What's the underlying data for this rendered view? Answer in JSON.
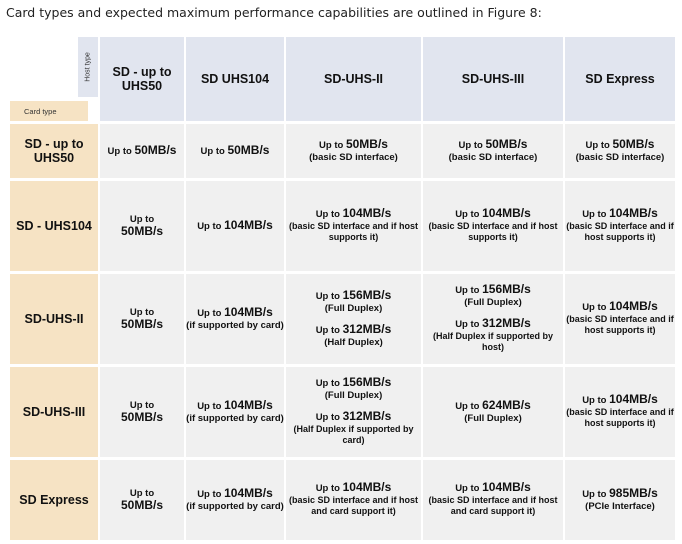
{
  "intro": "Card types and expected maximum performance capabilities are outlined in Figure 8:",
  "corner": {
    "host_type": "Host type",
    "card_type": "Card type"
  },
  "columns": [
    "SD - up to UHS50",
    "SD UHS104",
    "SD-UHS-II",
    "SD-UHS-III",
    "SD Express"
  ],
  "rows": [
    {
      "label": "SD - up to UHS50",
      "cells": [
        [
          {
            "t": "Up to ",
            "b": "50MB/s"
          }
        ],
        [
          {
            "t": "Up to ",
            "b": "50MB/s"
          }
        ],
        [
          {
            "t": "Up to ",
            "b": "50MB/s",
            "n": "(basic SD interface)"
          }
        ],
        [
          {
            "t": "Up to ",
            "b": "50MB/s",
            "n": "(basic SD interface)"
          }
        ],
        [
          {
            "t": "Up to ",
            "b": "50MB/s",
            "n": "(basic SD interface)"
          }
        ]
      ]
    },
    {
      "label": "SD - UHS104",
      "cells": [
        [
          {
            "t": "Up to",
            "b": "50MB/s"
          }
        ],
        [
          {
            "t": "Up to ",
            "b": "104MB/s"
          }
        ],
        [
          {
            "t": "Up to ",
            "b": "104MB/s",
            "n": "(basic SD interface and if host supports it)"
          }
        ],
        [
          {
            "t": "Up to ",
            "b": "104MB/s",
            "n": "(basic SD interface and if host supports it)"
          }
        ],
        [
          {
            "t": "Up to ",
            "b": "104MB/s",
            "n": "(basic SD interface and if host supports it)"
          }
        ]
      ]
    },
    {
      "label": "SD-UHS-II",
      "cells": [
        [
          {
            "t": "Up to",
            "b": "50MB/s"
          }
        ],
        [
          {
            "t": "Up to ",
            "b": "104MB/s",
            "n": "(if supported by card)"
          }
        ],
        [
          {
            "t": "Up to ",
            "b": "156MB/s",
            "n": "(Full Duplex)"
          },
          {
            "t": "Up to ",
            "b": "312MB/s",
            "n": "(Half Duplex)"
          }
        ],
        [
          {
            "t": "Up to ",
            "b": "156MB/s",
            "n": "(Full Duplex)"
          },
          {
            "t": "Up to ",
            "b": "312MB/s",
            "n": "(Half Duplex if supported by host)"
          }
        ],
        [
          {
            "t": "Up to ",
            "b": "104MB/s",
            "n": "(basic SD interface and if host supports it)"
          }
        ]
      ]
    },
    {
      "label": "SD-UHS-III",
      "cells": [
        [
          {
            "t": "Up to",
            "b": "50MB/s"
          }
        ],
        [
          {
            "t": "Up to ",
            "b": "104MB/s",
            "n": "(if supported by card)"
          }
        ],
        [
          {
            "t": "Up to ",
            "b": "156MB/s",
            "n": "(Full Duplex)"
          },
          {
            "t": "Up to ",
            "b": "312MB/s",
            "n": "(Half Duplex if supported by card)"
          }
        ],
        [
          {
            "t": "Up to ",
            "b": "624MB/s",
            "n": "(Full Duplex)"
          }
        ],
        [
          {
            "t": "Up to ",
            "b": "104MB/s",
            "n": "(basic SD interface and if host supports it)"
          }
        ]
      ]
    },
    {
      "label": "SD Express",
      "cells": [
        [
          {
            "t": "Up to",
            "b": "50MB/s"
          }
        ],
        [
          {
            "t": "Up to ",
            "b": "104MB/s",
            "n": "(if supported by card)"
          }
        ],
        [
          {
            "t": "Up to ",
            "b": "104MB/s",
            "n": "(basic SD interface and if host and card support it)"
          }
        ],
        [
          {
            "t": "Up to ",
            "b": "104MB/s",
            "n": "(basic SD interface and if host and card support it)"
          }
        ],
        [
          {
            "t": "Up to ",
            "b": "985MB/s",
            "n": "(PCIe Interface)"
          }
        ]
      ]
    }
  ]
}
